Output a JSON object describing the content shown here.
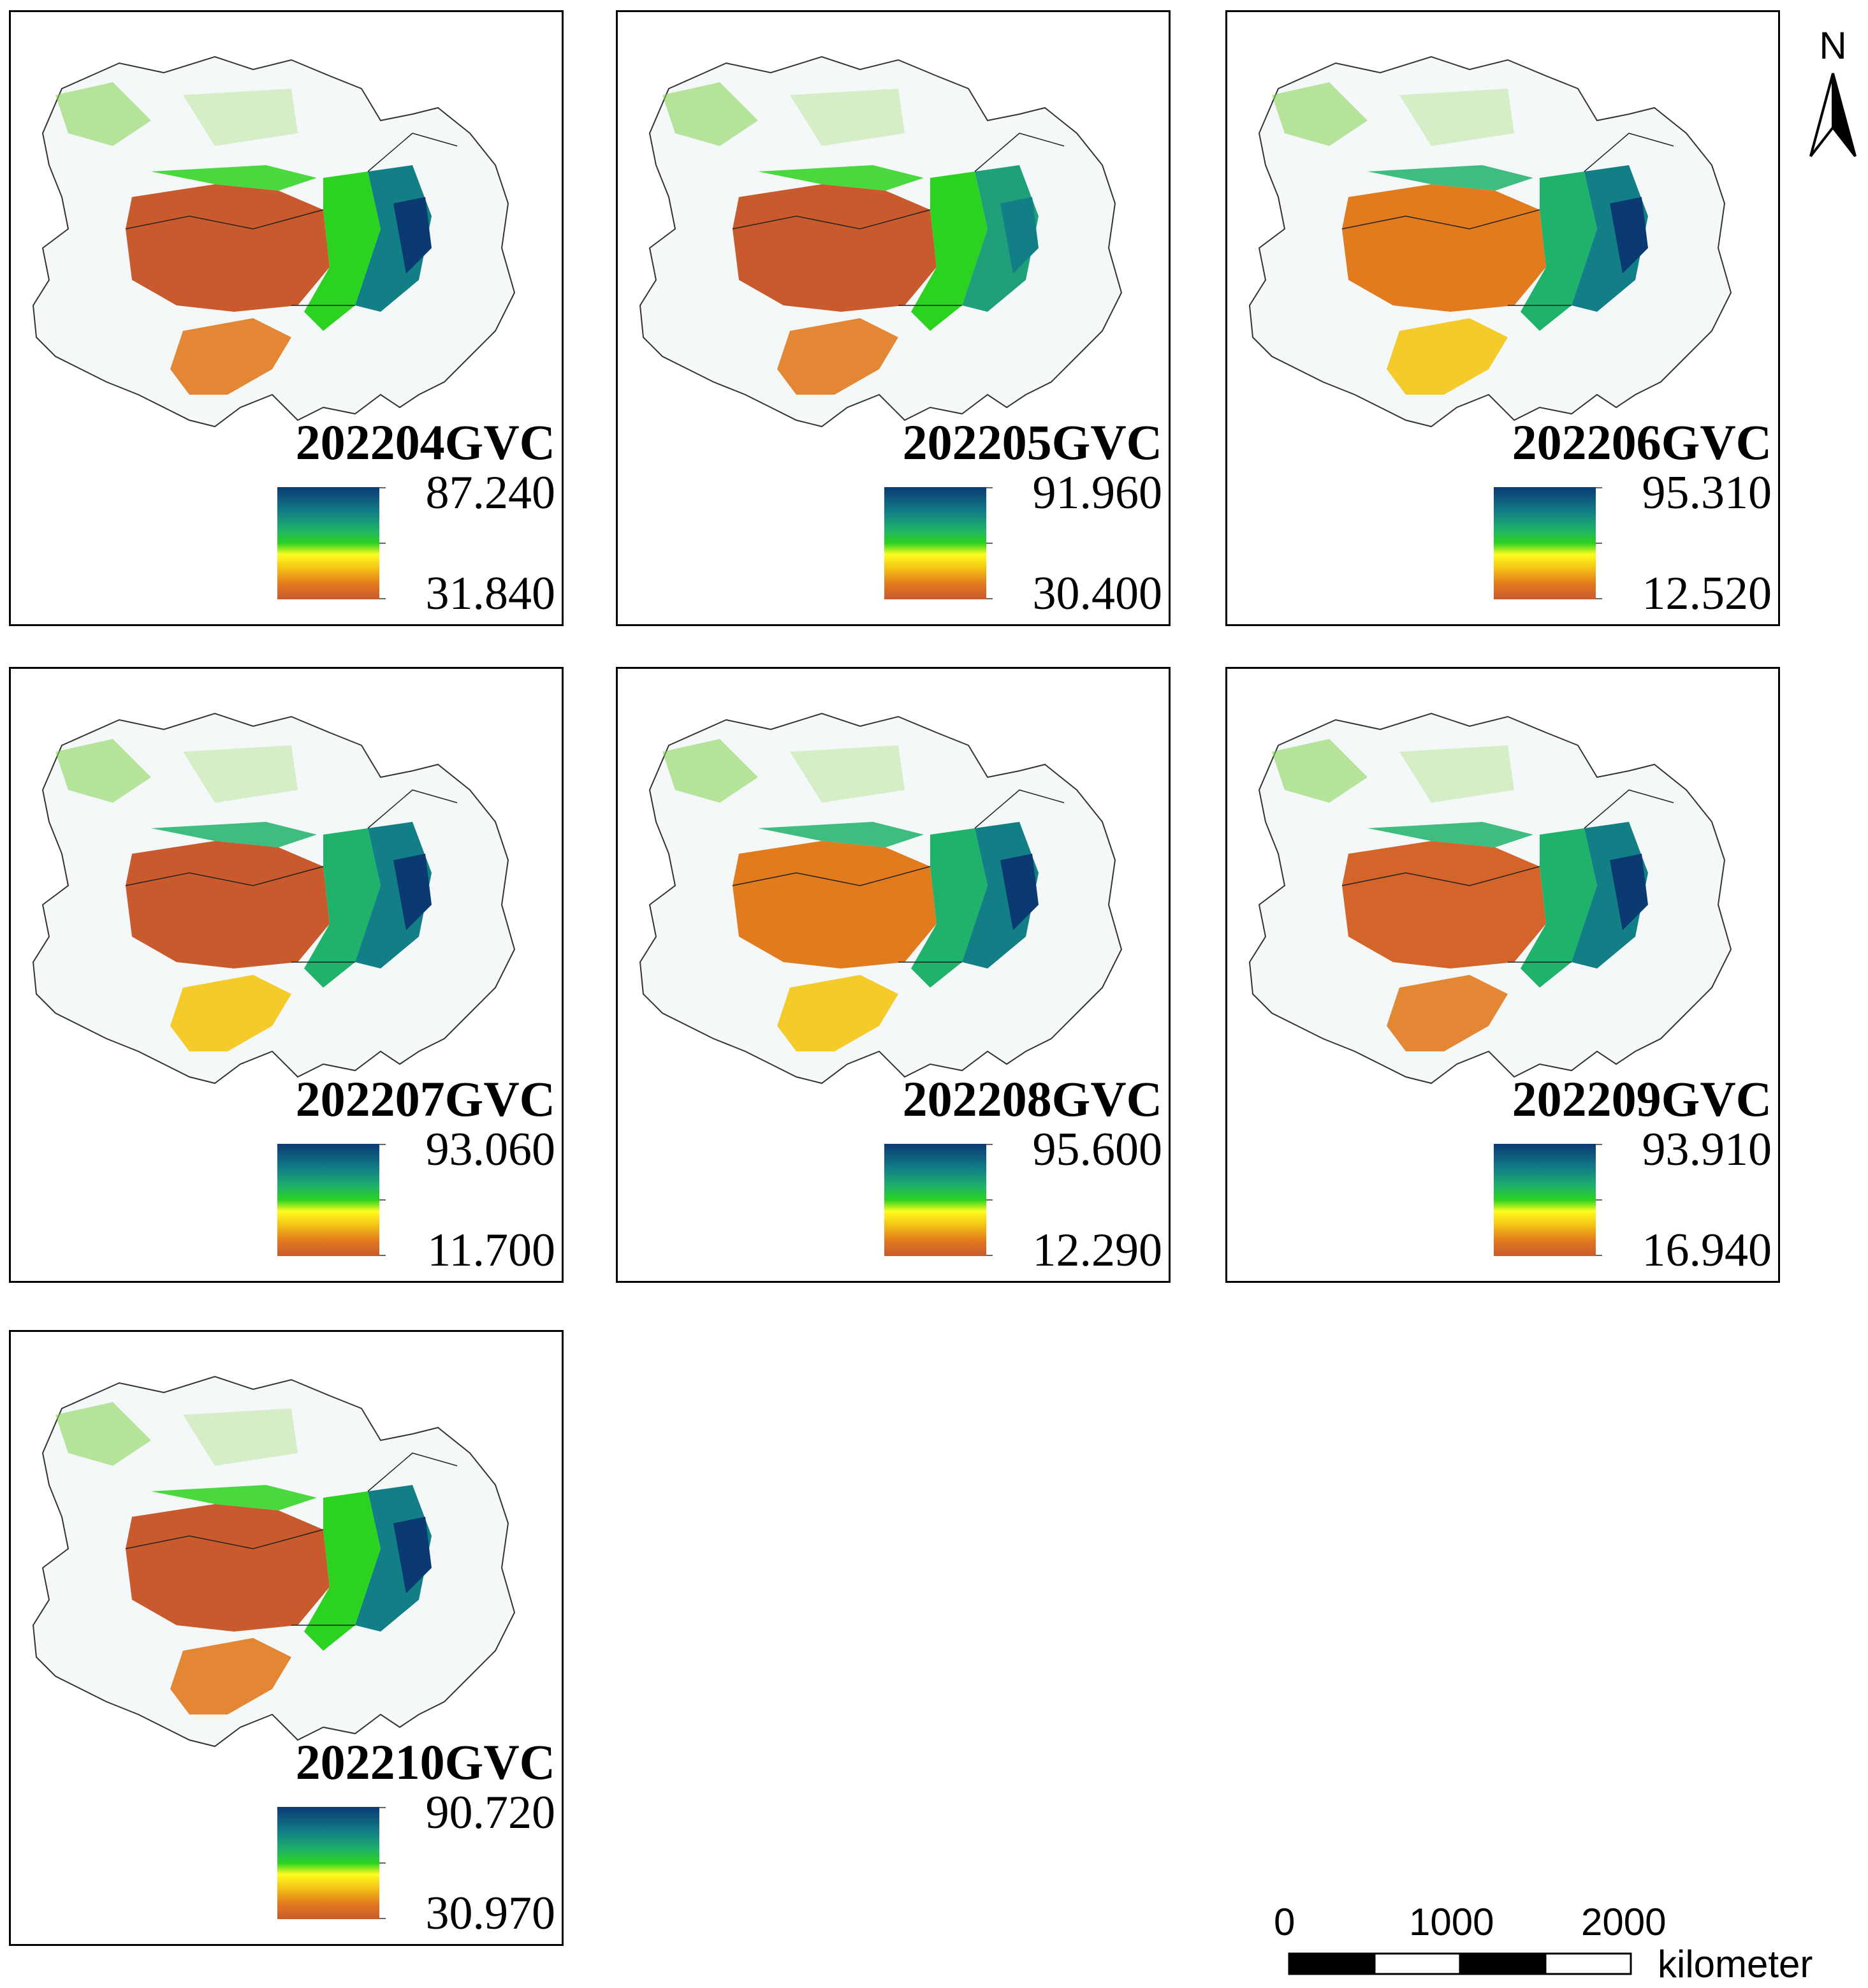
{
  "panels": [
    {
      "title": "202204GVC",
      "max": "87.240",
      "min": "31.840"
    },
    {
      "title": "202205GVC",
      "max": "91.960",
      "min": "30.400"
    },
    {
      "title": "202206GVC",
      "max": "95.310",
      "min": "12.520"
    },
    {
      "title": "202207GVC",
      "max": "93.060",
      "min": "11.700"
    },
    {
      "title": "202208GVC",
      "max": "95.600",
      "min": "12.290"
    },
    {
      "title": "202209GVC",
      "max": "93.910",
      "min": "16.940"
    },
    {
      "title": "202210GVC",
      "max": "90.720",
      "min": "30.970"
    }
  ],
  "north_label": "N",
  "scale": {
    "labels": [
      "0",
      "1000",
      "2000"
    ],
    "unit": "kilometer"
  },
  "colors": {
    "high": "#0b3a73",
    "mid": "#2bd21f",
    "low_mid": "#fdfd20",
    "low": "#c95a2e",
    "frame": "#000000"
  }
}
